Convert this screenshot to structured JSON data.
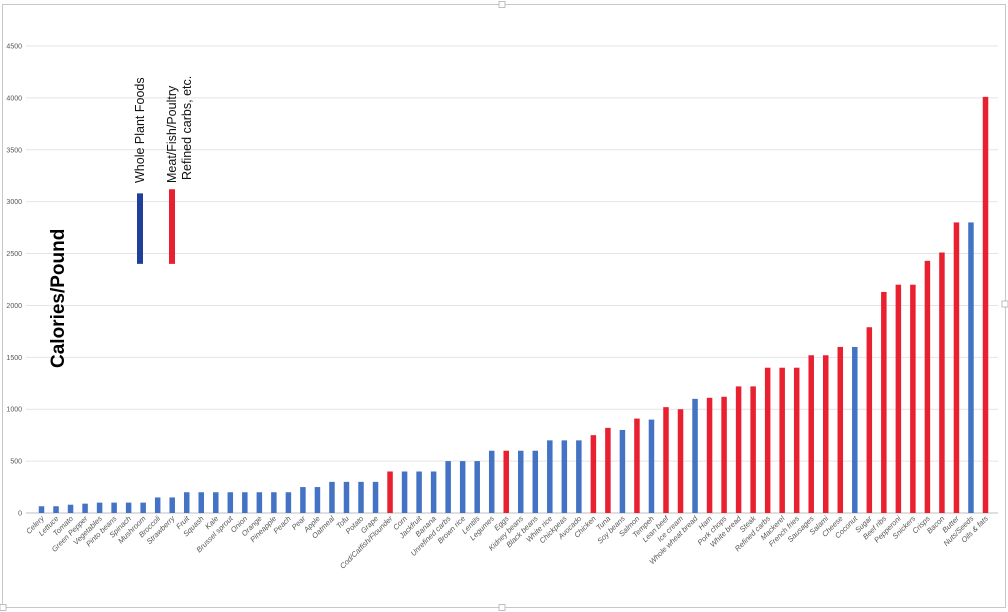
{
  "chart_data": {
    "type": "bar",
    "ylabel": "Calories/Pound",
    "ylim": [
      0,
      4500
    ],
    "yticks": [
      0,
      500,
      1000,
      1500,
      2000,
      2500,
      3000,
      3500,
      4000,
      4500
    ],
    "grid": true,
    "legend": [
      {
        "label": "Whole Plant Foods",
        "color": "#1f3f9a",
        "range": [
          2400,
          3080
        ]
      },
      {
        "label": "Meat/Fish/Poultry",
        "color": "#e8202f",
        "range": [
          2400,
          3120
        ]
      },
      {
        "label": "Refined carbs, etc.",
        "color": "#e8202f"
      }
    ],
    "colors": {
      "plant": "#4472c4",
      "other": "#e8202f"
    },
    "bars": [
      {
        "category": "Celery",
        "value": 65,
        "group": "plant"
      },
      {
        "category": "Lettuce",
        "value": 65,
        "group": "plant"
      },
      {
        "category": "Tomato",
        "value": 80,
        "group": "plant"
      },
      {
        "category": "Green Pepper",
        "value": 90,
        "group": "plant"
      },
      {
        "category": "Vegetables",
        "value": 100,
        "group": "plant"
      },
      {
        "category": "Pinto beans",
        "value": 100,
        "group": "plant"
      },
      {
        "category": "Spinach",
        "value": 100,
        "group": "plant"
      },
      {
        "category": "Mushroom",
        "value": 100,
        "group": "plant"
      },
      {
        "category": "Broccoli",
        "value": 150,
        "group": "plant"
      },
      {
        "category": "Strawberry",
        "value": 150,
        "group": "plant"
      },
      {
        "category": "Fruit",
        "value": 200,
        "group": "plant"
      },
      {
        "category": "Squash",
        "value": 200,
        "group": "plant"
      },
      {
        "category": "Kale",
        "value": 200,
        "group": "plant"
      },
      {
        "category": "Brussel sprout",
        "value": 200,
        "group": "plant"
      },
      {
        "category": "Onion",
        "value": 200,
        "group": "plant"
      },
      {
        "category": "Orange",
        "value": 200,
        "group": "plant"
      },
      {
        "category": "Pineapple",
        "value": 200,
        "group": "plant"
      },
      {
        "category": "Peach",
        "value": 200,
        "group": "plant"
      },
      {
        "category": "Pear",
        "value": 250,
        "group": "plant"
      },
      {
        "category": "Apple",
        "value": 250,
        "group": "plant"
      },
      {
        "category": "Oatmeal",
        "value": 300,
        "group": "plant"
      },
      {
        "category": "Tofu",
        "value": 300,
        "group": "plant"
      },
      {
        "category": "Potato",
        "value": 300,
        "group": "plant"
      },
      {
        "category": "Grape",
        "value": 300,
        "group": "plant"
      },
      {
        "category": "Cod/Catfish/Flounder",
        "value": 400,
        "group": "other"
      },
      {
        "category": "Corn",
        "value": 400,
        "group": "plant"
      },
      {
        "category": "Jackfruit",
        "value": 400,
        "group": "plant"
      },
      {
        "category": "Banana",
        "value": 400,
        "group": "plant"
      },
      {
        "category": "Unrefined carbs",
        "value": 500,
        "group": "plant"
      },
      {
        "category": "Brown rice",
        "value": 500,
        "group": "plant"
      },
      {
        "category": "Lentils",
        "value": 500,
        "group": "plant"
      },
      {
        "category": "Legumes",
        "value": 600,
        "group": "plant"
      },
      {
        "category": "Eggs",
        "value": 600,
        "group": "other"
      },
      {
        "category": "Kidney beans",
        "value": 600,
        "group": "plant"
      },
      {
        "category": "Black beans",
        "value": 600,
        "group": "plant"
      },
      {
        "category": "White rice",
        "value": 700,
        "group": "plant"
      },
      {
        "category": "Chickpeas",
        "value": 700,
        "group": "plant"
      },
      {
        "category": "Avocado",
        "value": 700,
        "group": "plant"
      },
      {
        "category": "Chicken",
        "value": 750,
        "group": "other"
      },
      {
        "category": "Tuna",
        "value": 820,
        "group": "other"
      },
      {
        "category": "Soy beans",
        "value": 800,
        "group": "plant"
      },
      {
        "category": "Salmon",
        "value": 910,
        "group": "other"
      },
      {
        "category": "Tempeh",
        "value": 900,
        "group": "plant"
      },
      {
        "category": "Lean beef",
        "value": 1020,
        "group": "other"
      },
      {
        "category": "Ice cream",
        "value": 1000,
        "group": "other"
      },
      {
        "category": "Whole wheat bread",
        "value": 1100,
        "group": "plant"
      },
      {
        "category": "Ham",
        "value": 1110,
        "group": "other"
      },
      {
        "category": "Pork chops",
        "value": 1120,
        "group": "other"
      },
      {
        "category": "White bread",
        "value": 1220,
        "group": "other"
      },
      {
        "category": "Steak",
        "value": 1220,
        "group": "other"
      },
      {
        "category": "Refined carbs",
        "value": 1400,
        "group": "other"
      },
      {
        "category": "Mackerel",
        "value": 1400,
        "group": "other"
      },
      {
        "category": "French fries",
        "value": 1400,
        "group": "other"
      },
      {
        "category": "Sausages",
        "value": 1520,
        "group": "other"
      },
      {
        "category": "Salami",
        "value": 1520,
        "group": "other"
      },
      {
        "category": "Cheese",
        "value": 1600,
        "group": "other"
      },
      {
        "category": "Coconut",
        "value": 1600,
        "group": "plant"
      },
      {
        "category": "Sugar",
        "value": 1790,
        "group": "other"
      },
      {
        "category": "Beef ribs",
        "value": 2130,
        "group": "other"
      },
      {
        "category": "Pepperoni",
        "value": 2200,
        "group": "other"
      },
      {
        "category": "Snickers",
        "value": 2200,
        "group": "other"
      },
      {
        "category": "Crisps",
        "value": 2430,
        "group": "other"
      },
      {
        "category": "Bacon",
        "value": 2510,
        "group": "other"
      },
      {
        "category": "Butter",
        "value": 2800,
        "group": "other"
      },
      {
        "category": "Nuts/Seeds",
        "value": 2800,
        "group": "plant"
      },
      {
        "category": "Oils & fats",
        "value": 4010,
        "group": "other"
      }
    ]
  }
}
